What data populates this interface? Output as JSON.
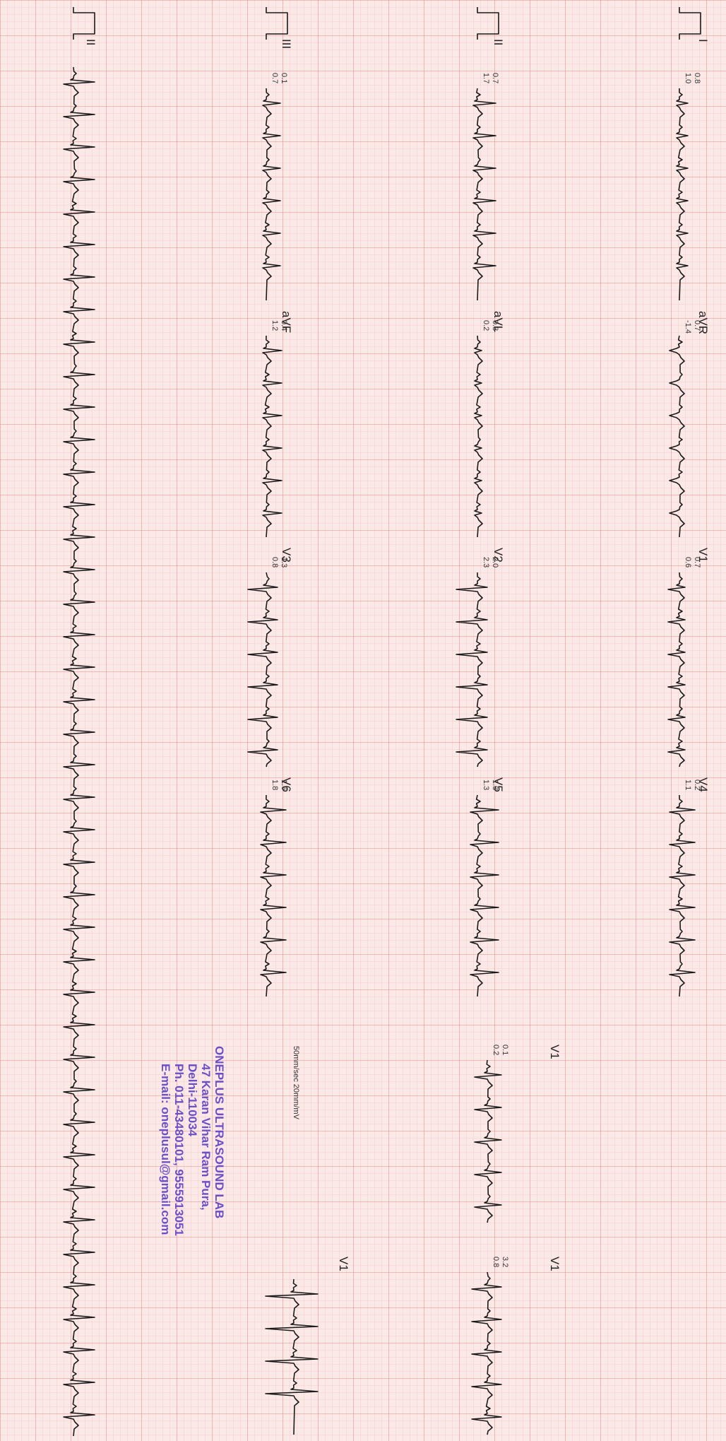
{
  "leads": [
    {
      "label": "I",
      "values": [
        "0.8",
        "1.0"
      ]
    },
    {
      "label": "aVR",
      "values": [
        "0.7",
        "-1.4"
      ]
    },
    {
      "label": "V1",
      "values": [
        "0.7",
        "0.6"
      ]
    },
    {
      "label": "V4",
      "values": [
        "0.2",
        "1.1"
      ]
    },
    {
      "label": "II",
      "values": [
        "0.7",
        "1.7"
      ]
    },
    {
      "label": "aVL",
      "values": [
        "0.3",
        "0.2"
      ]
    },
    {
      "label": "V2",
      "values": [
        "2.0",
        "2.3"
      ]
    },
    {
      "label": "V5",
      "values": [
        "1.3",
        "1.3"
      ]
    },
    {
      "label": "III",
      "values": [
        "0.1",
        "0.7"
      ]
    },
    {
      "label": "aVF",
      "values": [
        "0.4",
        "1.2"
      ]
    },
    {
      "label": "V3",
      "values": [
        "1.3",
        "0.8"
      ]
    },
    {
      "label": "V6",
      "values": [
        "1.6",
        "1.8"
      ]
    },
    {
      "label": "V1",
      "values": [
        "0.1",
        "0.2"
      ]
    },
    {
      "label": "V1",
      "values": [
        "3.2",
        "0.8"
      ]
    },
    {
      "label": "V1",
      "values": []
    },
    {
      "label": "II",
      "values": []
    }
  ],
  "calibration": "50mm/sec 20mm/mV",
  "stamp": [
    "ONEPLUS ULTRASOUND LAB",
    "47 Karan Vihar Ram Pura,",
    "Delhi-110034",
    "Ph. 011-43480101, 9555913051",
    "E-mail: oneplusul@gmail.com"
  ]
}
